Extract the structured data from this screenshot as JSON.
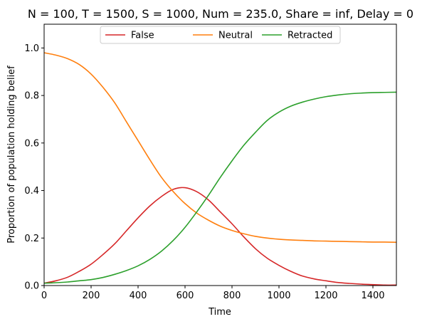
{
  "chart_data": {
    "type": "line",
    "title": "N = 100, T = 1500, S = 1000, Num = 235.0, Share = inf, Delay = 0",
    "xlabel": "Time",
    "ylabel": "Proportion of population holding belief",
    "xlim": [
      0,
      1500
    ],
    "ylim": [
      0,
      1.1
    ],
    "xticks": [
      0,
      200,
      400,
      600,
      800,
      1000,
      1200,
      1400
    ],
    "yticks": [
      0.0,
      0.2,
      0.4,
      0.6,
      0.8,
      1.0
    ],
    "xtick_labels": [
      "0",
      "200",
      "400",
      "600",
      "800",
      "1000",
      "1200",
      "1400"
    ],
    "ytick_labels": [
      "0.0",
      "0.2",
      "0.4",
      "0.6",
      "0.8",
      "1.0"
    ],
    "grid": false,
    "legend_position": "top-center",
    "series": [
      {
        "name": "False",
        "color": "#d62728",
        "x": [
          0,
          50,
          100,
          150,
          200,
          250,
          300,
          350,
          400,
          450,
          500,
          550,
          600,
          650,
          700,
          750,
          800,
          850,
          900,
          950,
          1000,
          1050,
          1100,
          1150,
          1200,
          1250,
          1300,
          1350,
          1400,
          1450,
          1500
        ],
        "y": [
          0.01,
          0.02,
          0.035,
          0.06,
          0.09,
          0.13,
          0.175,
          0.23,
          0.285,
          0.335,
          0.375,
          0.405,
          0.412,
          0.395,
          0.36,
          0.31,
          0.26,
          0.205,
          0.155,
          0.115,
          0.085,
          0.06,
          0.04,
          0.028,
          0.02,
          0.013,
          0.009,
          0.006,
          0.004,
          0.002,
          0.002
        ]
      },
      {
        "name": "Neutral",
        "color": "#ff7f0e",
        "x": [
          0,
          50,
          100,
          150,
          200,
          250,
          300,
          350,
          400,
          450,
          500,
          550,
          600,
          650,
          700,
          750,
          800,
          850,
          900,
          950,
          1000,
          1050,
          1100,
          1150,
          1200,
          1250,
          1300,
          1350,
          1400,
          1450,
          1500
        ],
        "y": [
          0.98,
          0.97,
          0.955,
          0.93,
          0.89,
          0.835,
          0.77,
          0.69,
          0.61,
          0.53,
          0.455,
          0.395,
          0.345,
          0.305,
          0.275,
          0.25,
          0.232,
          0.218,
          0.207,
          0.2,
          0.195,
          0.192,
          0.19,
          0.188,
          0.187,
          0.186,
          0.185,
          0.184,
          0.183,
          0.183,
          0.182
        ]
      },
      {
        "name": "Retracted",
        "color": "#2ca02c",
        "x": [
          0,
          50,
          100,
          150,
          200,
          250,
          300,
          350,
          400,
          450,
          500,
          550,
          600,
          650,
          700,
          750,
          800,
          850,
          900,
          950,
          1000,
          1050,
          1100,
          1150,
          1200,
          1250,
          1300,
          1350,
          1400,
          1450,
          1500
        ],
        "y": [
          0.01,
          0.012,
          0.015,
          0.02,
          0.025,
          0.034,
          0.047,
          0.063,
          0.083,
          0.11,
          0.145,
          0.19,
          0.245,
          0.31,
          0.38,
          0.455,
          0.525,
          0.59,
          0.645,
          0.695,
          0.73,
          0.755,
          0.772,
          0.785,
          0.795,
          0.802,
          0.807,
          0.81,
          0.812,
          0.813,
          0.814
        ]
      }
    ]
  }
}
